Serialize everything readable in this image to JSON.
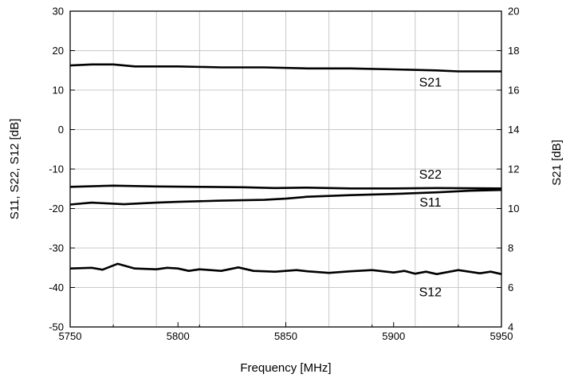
{
  "chart_data": {
    "type": "line",
    "xlabel": "Frequency [MHz]",
    "ylabel": "S11, S22, S12 [dB]",
    "y2label": "S21 [dB]",
    "xlim": [
      5750,
      5950
    ],
    "ylim": [
      -50,
      30
    ],
    "y2lim": [
      4,
      20
    ],
    "xticks": [
      5750,
      5800,
      5850,
      5900,
      5950
    ],
    "yticks": [
      -50,
      -40,
      -30,
      -20,
      -10,
      0,
      10,
      20,
      30
    ],
    "y2ticks": [
      4,
      6,
      8,
      10,
      12,
      14,
      16,
      18,
      20
    ],
    "grid": true,
    "series": [
      {
        "name": "S21",
        "axis": "right",
        "x": [
          5750,
          5760,
          5770,
          5780,
          5800,
          5820,
          5840,
          5860,
          5880,
          5900,
          5920,
          5930,
          5950
        ],
        "y": [
          17.25,
          17.3,
          17.3,
          17.2,
          17.2,
          17.15,
          17.15,
          17.1,
          17.1,
          17.05,
          17.0,
          16.95,
          16.95
        ]
      },
      {
        "name": "S22",
        "axis": "left",
        "x": [
          5750,
          5770,
          5790,
          5810,
          5830,
          5845,
          5860,
          5880,
          5900,
          5920,
          5950
        ],
        "y": [
          -14.5,
          -14.2,
          -14.4,
          -14.5,
          -14.6,
          -14.8,
          -14.7,
          -14.9,
          -14.9,
          -14.8,
          -14.9
        ]
      },
      {
        "name": "S11",
        "axis": "left",
        "x": [
          5750,
          5760,
          5775,
          5790,
          5800,
          5820,
          5840,
          5850,
          5860,
          5880,
          5900,
          5920,
          5935,
          5950
        ],
        "y": [
          -19.0,
          -18.5,
          -18.9,
          -18.5,
          -18.3,
          -18.0,
          -17.8,
          -17.5,
          -17.0,
          -16.6,
          -16.3,
          -15.9,
          -15.5,
          -15.3
        ]
      },
      {
        "name": "S12",
        "axis": "left",
        "x": [
          5750,
          5760,
          5765,
          5772,
          5780,
          5790,
          5795,
          5800,
          5805,
          5810,
          5820,
          5828,
          5835,
          5845,
          5855,
          5860,
          5870,
          5880,
          5890,
          5900,
          5905,
          5910,
          5915,
          5920,
          5930,
          5940,
          5945,
          5950
        ],
        "y": [
          -35.2,
          -35.0,
          -35.5,
          -34.0,
          -35.2,
          -35.4,
          -35.0,
          -35.2,
          -35.8,
          -35.4,
          -35.8,
          -34.9,
          -35.8,
          -36.0,
          -35.6,
          -35.9,
          -36.3,
          -35.9,
          -35.6,
          -36.2,
          -35.8,
          -36.5,
          -36.0,
          -36.6,
          -35.6,
          -36.4,
          -36.0,
          -36.6
        ]
      }
    ]
  }
}
